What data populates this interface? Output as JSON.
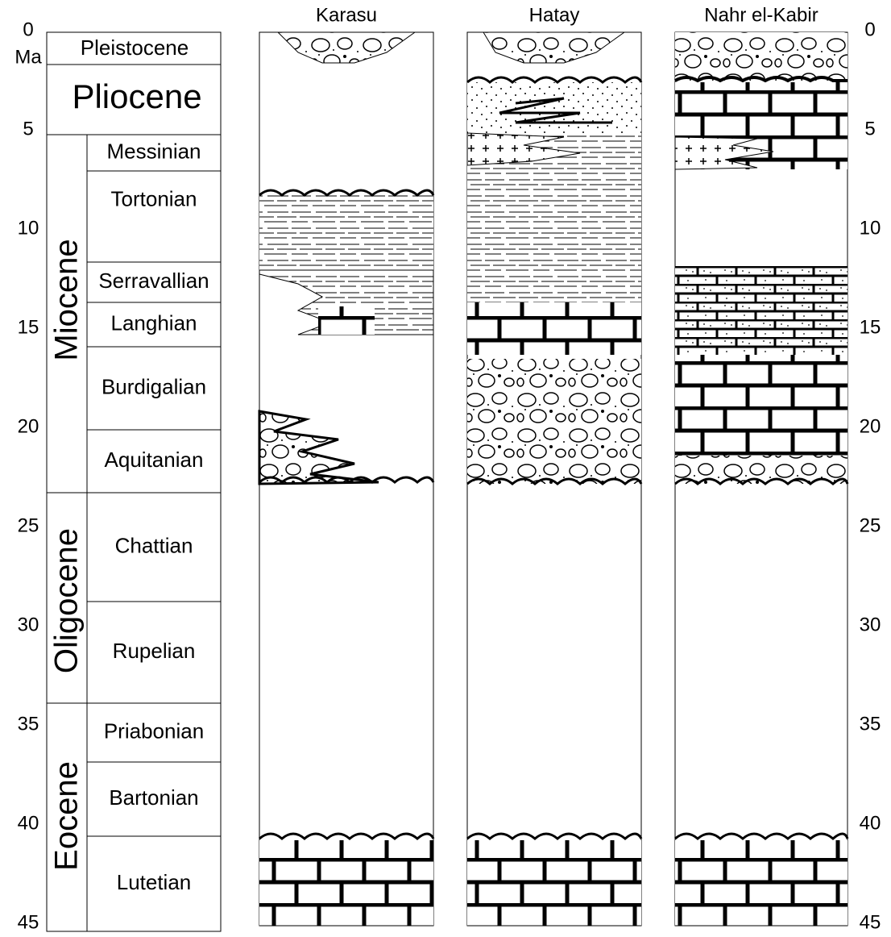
{
  "axis": {
    "unit": "Ma",
    "left_ticks": [
      0,
      5,
      10,
      15,
      20,
      25,
      30,
      35,
      40,
      45
    ],
    "right_ticks": [
      0,
      5,
      10,
      15,
      20,
      25,
      30,
      35,
      40,
      45
    ]
  },
  "timescale": {
    "epochs": [
      "Pleistocene",
      "Pliocene",
      "Miocene",
      "Oligocene",
      "Eocene"
    ],
    "stages": [
      "Messinian",
      "Tortonian",
      "Serravallian",
      "Langhian",
      "Burdigalian",
      "Aquitanian",
      "Chattian",
      "Rupelian",
      "Priabonian",
      "Bartonian",
      "Lutetian"
    ]
  },
  "sections": [
    "Karasu",
    "Hatay",
    "Nahr el-Kabir"
  ]
}
